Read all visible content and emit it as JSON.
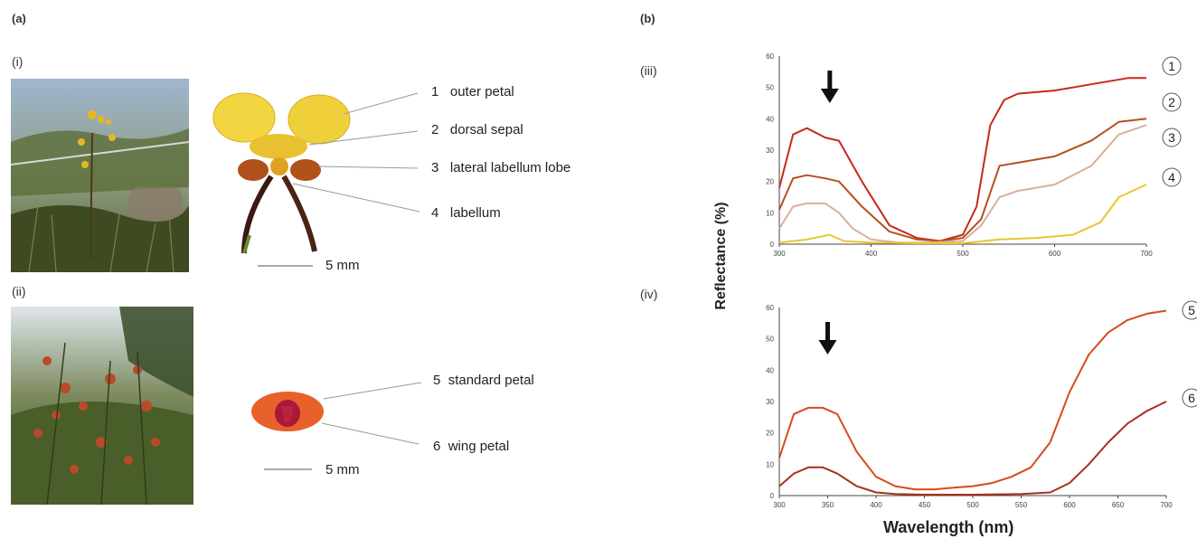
{
  "panel_labels": {
    "a": "(a)",
    "b": "(b)"
  },
  "sub_labels": {
    "i": "(i)",
    "ii": "(ii)",
    "iii": "(iii)",
    "iv": "(iv)"
  },
  "orchid_callouts": [
    {
      "num": "1",
      "text": "outer petal"
    },
    {
      "num": "2",
      "text": "dorsal sepal"
    },
    {
      "num": "3",
      "text": "lateral labellum lobe"
    },
    {
      "num": "4",
      "text": "labellum"
    }
  ],
  "pea_callouts": [
    {
      "num": "5",
      "text": "standard petal"
    },
    {
      "num": "6",
      "text": "wing petal"
    }
  ],
  "scale_bars": {
    "orchid": "5 mm",
    "pea": "5 mm"
  },
  "shared_ylabel": "Reflectance (%)",
  "shared_xlabel": "Wavelength (nm)",
  "chart_data": [
    {
      "type": "line",
      "panel": "(iii)",
      "xlim": [
        300,
        700
      ],
      "ylim": [
        0,
        60
      ],
      "xticks": [
        "300",
        "400",
        "500",
        "600",
        "700"
      ],
      "yticks": [
        "0",
        "10",
        "20",
        "30",
        "40",
        "50",
        "60"
      ],
      "arrow_at_x": 355,
      "series": [
        {
          "label": "1",
          "color": "#c8281c",
          "x": [
            300,
            315,
            330,
            350,
            365,
            390,
            420,
            450,
            475,
            500,
            515,
            530,
            545,
            560,
            600,
            640,
            680,
            700
          ],
          "y": [
            18,
            35,
            37,
            34,
            33,
            20,
            6,
            2,
            1,
            3,
            12,
            38,
            46,
            48,
            49,
            51,
            53,
            53
          ]
        },
        {
          "label": "2",
          "color": "#b4501e",
          "x": [
            300,
            315,
            330,
            350,
            365,
            390,
            420,
            450,
            475,
            500,
            520,
            540,
            560,
            600,
            640,
            670,
            700
          ],
          "y": [
            11,
            21,
            22,
            21,
            20,
            12,
            4,
            1.5,
            1,
            2,
            8,
            25,
            26,
            28,
            33,
            39,
            40
          ]
        },
        {
          "label": "3",
          "color": "#d8b09a",
          "x": [
            300,
            315,
            330,
            350,
            365,
            380,
            400,
            430,
            460,
            500,
            520,
            540,
            560,
            600,
            640,
            670,
            700
          ],
          "y": [
            5,
            12,
            13,
            13,
            10,
            5,
            1.5,
            0.5,
            0.5,
            1,
            6,
            15,
            17,
            19,
            25,
            35,
            38
          ]
        },
        {
          "label": "4",
          "color": "#e8c531",
          "x": [
            300,
            330,
            355,
            370,
            400,
            450,
            500,
            540,
            580,
            620,
            650,
            670,
            700
          ],
          "y": [
            0.5,
            1.5,
            3,
            1,
            0.5,
            0.3,
            0.3,
            1.5,
            2,
            3,
            7,
            15,
            19
          ]
        }
      ]
    },
    {
      "type": "line",
      "panel": "(iv)",
      "xlim": [
        300,
        700
      ],
      "ylim": [
        0,
        60
      ],
      "xticks": [
        "300",
        "350",
        "400",
        "450",
        "500",
        "550",
        "600",
        "650",
        "700"
      ],
      "yticks": [
        "0",
        "10",
        "20",
        "30",
        "40",
        "50",
        "60"
      ],
      "arrow_at_x": 350,
      "series": [
        {
          "label": "5",
          "color": "#d84a1c",
          "x": [
            300,
            315,
            330,
            345,
            360,
            380,
            400,
            420,
            440,
            460,
            480,
            500,
            520,
            540,
            560,
            580,
            600,
            620,
            640,
            660,
            680,
            700
          ],
          "y": [
            12,
            26,
            28,
            28,
            26,
            14,
            6,
            3,
            2,
            2,
            2.5,
            3,
            4,
            6,
            9,
            17,
            33,
            45,
            52,
            56,
            58,
            59
          ]
        },
        {
          "label": "6",
          "color": "#a8301c",
          "x": [
            300,
            315,
            330,
            345,
            360,
            380,
            400,
            420,
            450,
            500,
            550,
            580,
            600,
            620,
            640,
            660,
            680,
            700
          ],
          "y": [
            3,
            7,
            9,
            9,
            7,
            3,
            1,
            0.5,
            0.3,
            0.3,
            0.5,
            1,
            4,
            10,
            17,
            23,
            27,
            30
          ]
        }
      ]
    }
  ]
}
